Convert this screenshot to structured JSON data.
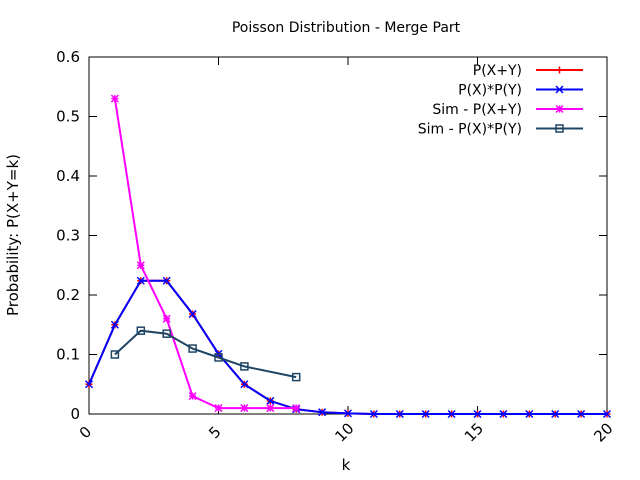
{
  "chart_data": {
    "type": "line",
    "title": "Poisson Distribution - Merge Part",
    "xlabel": "k",
    "ylabel": "Probability: P(X+Y=k)",
    "xlim": [
      0,
      20
    ],
    "ylim": [
      0,
      0.6
    ],
    "x_ticks": [
      "0",
      "5",
      "10",
      "15",
      "20"
    ],
    "y_ticks": [
      "0",
      "0.1",
      "0.2",
      "0.3",
      "0.4",
      "0.5",
      "0.6"
    ],
    "grid": false,
    "legend_position": "top-right",
    "series": [
      {
        "name": "P(X+Y)",
        "color": "#ff0000",
        "marker": "plus",
        "x": [
          0,
          1,
          2,
          3,
          4,
          5,
          6,
          7,
          8,
          9,
          10,
          11,
          12,
          13,
          14,
          15,
          16,
          17,
          18,
          19,
          20
        ],
        "y": [
          0.05,
          0.15,
          0.224,
          0.224,
          0.168,
          0.101,
          0.05,
          0.022,
          0.008,
          0.003,
          0.001,
          0.0,
          0.0,
          0.0,
          0.0,
          0.0,
          0.0,
          0.0,
          0.0,
          0.0,
          0.0
        ]
      },
      {
        "name": "P(X)*P(Y)",
        "color": "#0000ff",
        "marker": "cross",
        "x": [
          0,
          1,
          2,
          3,
          4,
          5,
          6,
          7,
          8,
          9,
          10,
          11,
          12,
          13,
          14,
          15,
          16,
          17,
          18,
          19,
          20
        ],
        "y": [
          0.05,
          0.15,
          0.224,
          0.224,
          0.168,
          0.101,
          0.05,
          0.022,
          0.008,
          0.003,
          0.001,
          0.0,
          0.0,
          0.0,
          0.0,
          0.0,
          0.0,
          0.0,
          0.0,
          0.0,
          0.0
        ]
      },
      {
        "name": "Sim - P(X+Y)",
        "color": "#ff00ff",
        "marker": "star",
        "x": [
          1,
          2,
          3,
          4,
          5,
          6,
          7,
          8
        ],
        "y": [
          0.53,
          0.25,
          0.16,
          0.03,
          0.01,
          0.01,
          0.01,
          0.01
        ]
      },
      {
        "name": "Sim - P(X)*P(Y)",
        "color": "#1f4565",
        "marker": "square",
        "x": [
          1,
          2,
          3,
          4,
          5,
          6,
          8
        ],
        "y": [
          0.1,
          0.14,
          0.135,
          0.11,
          0.095,
          0.08,
          0.062
        ]
      }
    ]
  }
}
